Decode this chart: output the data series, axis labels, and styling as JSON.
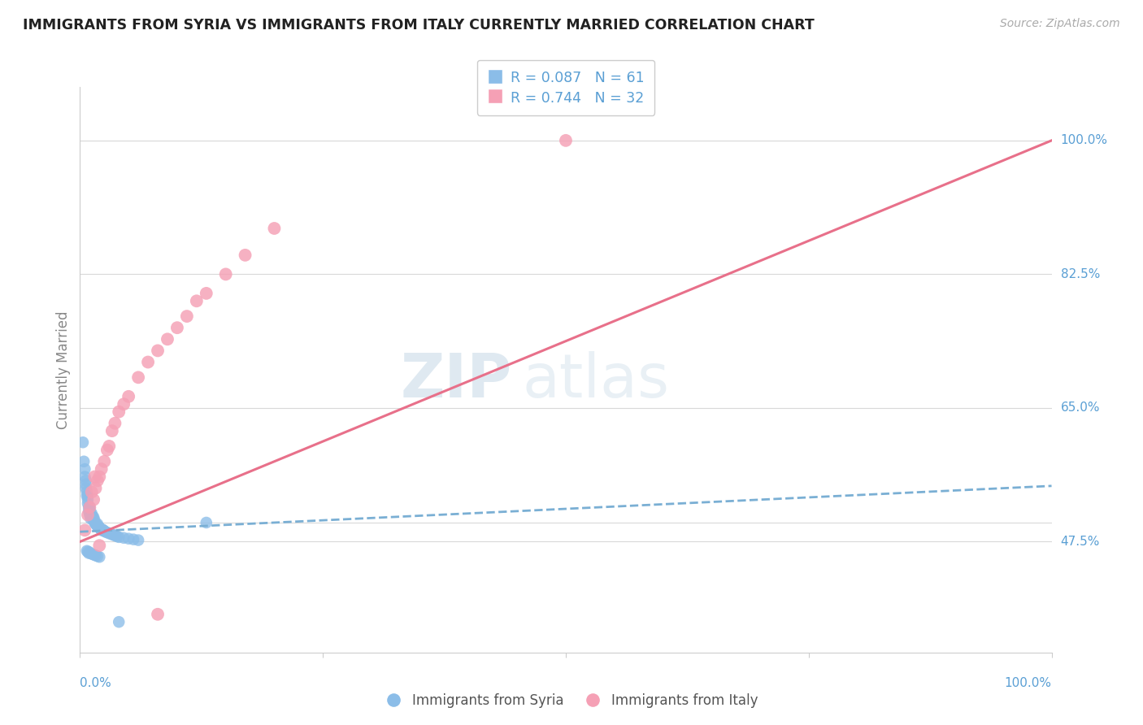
{
  "title": "IMMIGRANTS FROM SYRIA VS IMMIGRANTS FROM ITALY CURRENTLY MARRIED CORRELATION CHART",
  "source": "Source: ZipAtlas.com",
  "ylabel": "Currently Married",
  "watermark_zip": "ZIP",
  "watermark_atlas": "atlas",
  "xlim": [
    0.0,
    1.0
  ],
  "ylim": [
    0.33,
    1.07
  ],
  "ytick_vals": [
    0.475,
    0.5,
    0.65,
    0.825,
    1.0
  ],
  "ytick_labels": [
    "47.5%",
    "",
    "65.0%",
    "82.5%",
    "100.0%"
  ],
  "legend_syria_r": "R = 0.087",
  "legend_syria_n": "N = 61",
  "legend_italy_r": "R = 0.744",
  "legend_italy_n": "N = 32",
  "syria_color": "#8bbde8",
  "italy_color": "#f5a0b5",
  "syria_line_color": "#7aafd4",
  "italy_line_color": "#e8708a",
  "background_color": "#ffffff",
  "grid_color": "#d8d8d8",
  "title_color": "#222222",
  "axis_label_color": "#5a9fd4",
  "ylabel_color": "#888888",
  "source_color": "#aaaaaa",
  "syria_scatter_x": [
    0.003,
    0.004,
    0.005,
    0.005,
    0.006,
    0.006,
    0.006,
    0.007,
    0.007,
    0.008,
    0.008,
    0.008,
    0.009,
    0.009,
    0.01,
    0.01,
    0.01,
    0.011,
    0.011,
    0.012,
    0.012,
    0.013,
    0.013,
    0.014,
    0.014,
    0.015,
    0.015,
    0.016,
    0.017,
    0.018,
    0.018,
    0.019,
    0.02,
    0.021,
    0.022,
    0.023,
    0.024,
    0.025,
    0.026,
    0.028,
    0.03,
    0.032,
    0.034,
    0.036,
    0.038,
    0.04,
    0.045,
    0.05,
    0.055,
    0.06,
    0.007,
    0.008,
    0.009,
    0.01,
    0.012,
    0.014,
    0.016,
    0.018,
    0.02,
    0.13,
    0.04
  ],
  "syria_scatter_y": [
    0.605,
    0.58,
    0.56,
    0.57,
    0.55,
    0.545,
    0.555,
    0.535,
    0.54,
    0.53,
    0.525,
    0.535,
    0.52,
    0.515,
    0.51,
    0.515,
    0.52,
    0.51,
    0.505,
    0.508,
    0.512,
    0.505,
    0.508,
    0.503,
    0.507,
    0.5,
    0.503,
    0.498,
    0.497,
    0.495,
    0.498,
    0.495,
    0.493,
    0.492,
    0.49,
    0.491,
    0.49,
    0.489,
    0.488,
    0.487,
    0.486,
    0.485,
    0.484,
    0.483,
    0.482,
    0.481,
    0.48,
    0.479,
    0.478,
    0.477,
    0.463,
    0.462,
    0.46,
    0.461,
    0.459,
    0.458,
    0.457,
    0.456,
    0.455,
    0.5,
    0.37
  ],
  "italy_scatter_x": [
    0.005,
    0.008,
    0.01,
    0.012,
    0.014,
    0.016,
    0.018,
    0.02,
    0.022,
    0.025,
    0.028,
    0.03,
    0.033,
    0.036,
    0.04,
    0.045,
    0.05,
    0.06,
    0.07,
    0.08,
    0.09,
    0.1,
    0.11,
    0.12,
    0.13,
    0.15,
    0.17,
    0.2,
    0.02,
    0.015,
    0.5,
    0.08
  ],
  "italy_scatter_y": [
    0.49,
    0.51,
    0.52,
    0.54,
    0.53,
    0.545,
    0.555,
    0.56,
    0.57,
    0.58,
    0.595,
    0.6,
    0.62,
    0.63,
    0.645,
    0.655,
    0.665,
    0.69,
    0.71,
    0.725,
    0.74,
    0.755,
    0.77,
    0.79,
    0.8,
    0.825,
    0.85,
    0.885,
    0.47,
    0.56,
    1.0,
    0.38
  ],
  "syria_trendline_x": [
    0.0,
    1.0
  ],
  "syria_trendline_y": [
    0.488,
    0.548
  ],
  "italy_trendline_x": [
    0.0,
    1.0
  ],
  "italy_trendline_y": [
    0.475,
    1.0
  ]
}
